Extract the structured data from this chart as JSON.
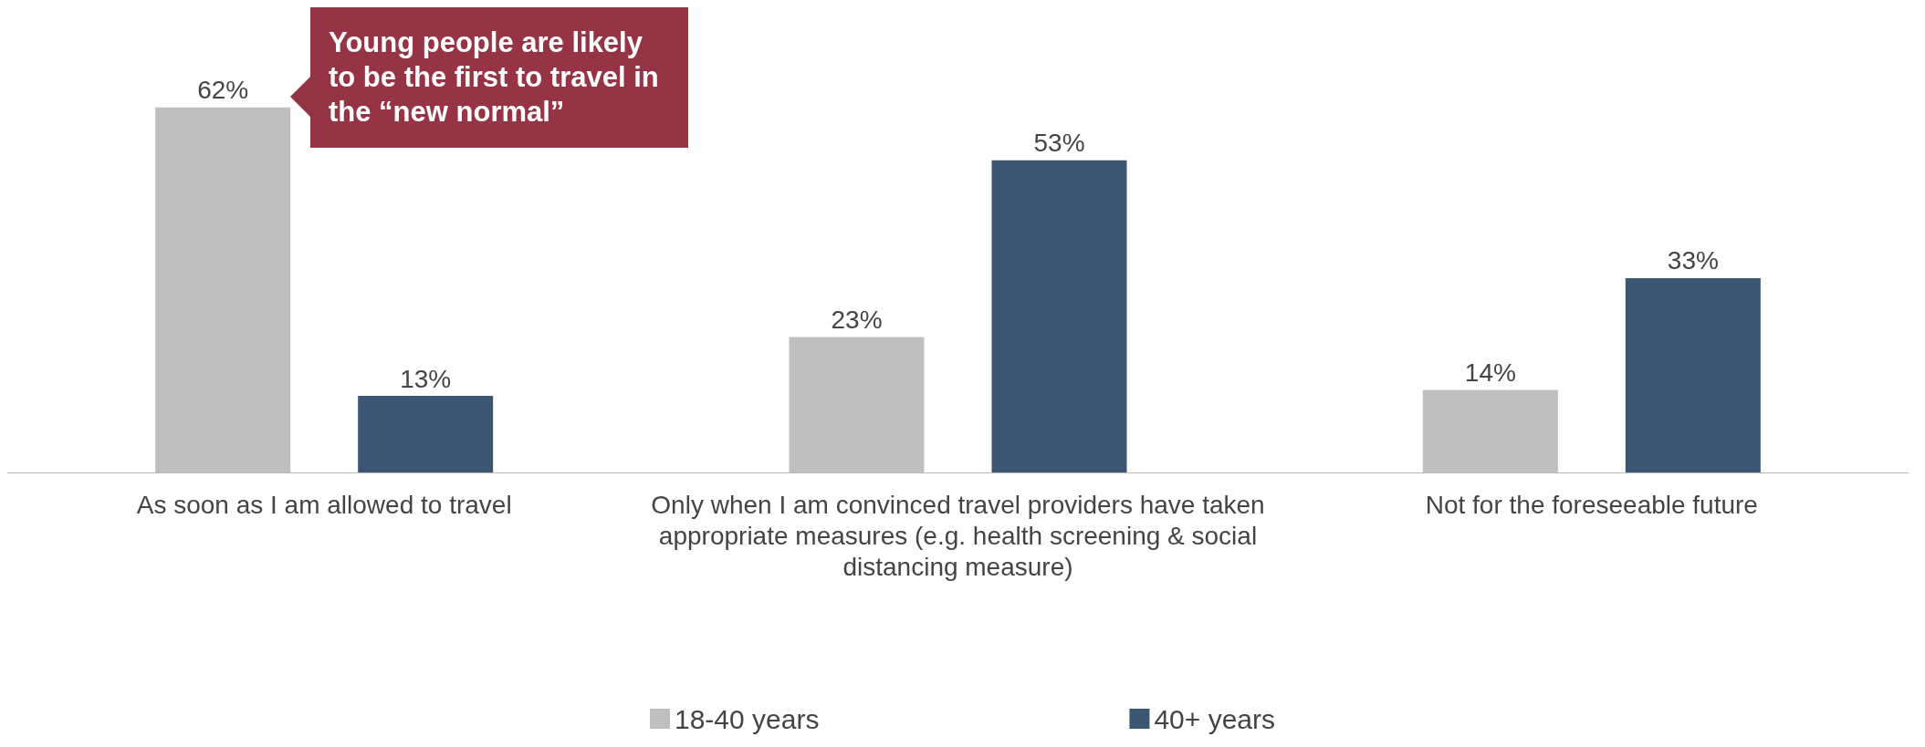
{
  "chart_data": {
    "type": "bar",
    "categories": [
      "As soon as I am allowed to travel",
      "Only when I am convinced travel providers have taken appropriate measures (e.g. health screening & social distancing measure)",
      "Not for the foreseeable future"
    ],
    "series": [
      {
        "name": "18-40 years",
        "color": "#bfbfbf",
        "values": [
          62,
          23,
          14
        ],
        "value_labels": [
          "62%",
          "23%",
          "14%"
        ]
      },
      {
        "name": "40+ years",
        "color": "#3b5572",
        "values": [
          13,
          53,
          33
        ],
        "value_labels": [
          "13%",
          "53%",
          "33%"
        ]
      }
    ],
    "annotations": [
      "Young people are likely to be the first to travel in the “new normal”"
    ],
    "legend": "bottom",
    "tick_labels": "x",
    "grid": false
  }
}
